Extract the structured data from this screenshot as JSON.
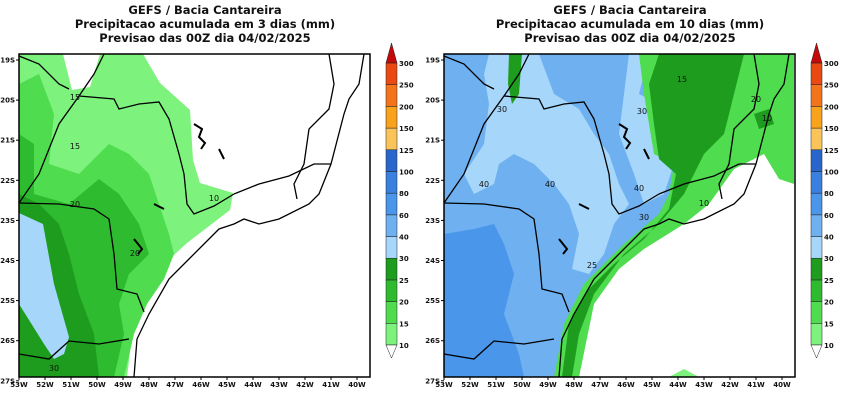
{
  "maps": [
    {
      "title": [
        "GEFS / Bacia Cantareira",
        "Precipitacao acumulada em 3 dias (mm)",
        "Previsao das 00Z dia 04/02/2025"
      ],
      "contour_labels": [
        "15",
        "15",
        "20",
        "20",
        "10",
        "30"
      ]
    },
    {
      "title": [
        "GEFS / Bacia Cantareira",
        "Precipitacao acumulada em 10 dias (mm)",
        "Previsao das 00Z dia 04/02/2025"
      ],
      "contour_labels": [
        "30",
        "30",
        "15",
        "20",
        "10",
        "40",
        "40",
        "40",
        "30",
        "10",
        "25"
      ]
    }
  ],
  "lat_ticks": [
    "19S",
    "20S",
    "21S",
    "22S",
    "23S",
    "24S",
    "25S",
    "26S",
    "27S"
  ],
  "lon_ticks": [
    "53W",
    "52W",
    "51W",
    "50W",
    "49W",
    "48W",
    "47W",
    "46W",
    "45W",
    "44W",
    "43W",
    "42W",
    "41W",
    "40W"
  ],
  "legend": {
    "levels": [
      "10",
      "15",
      "20",
      "25",
      "30",
      "40",
      "60",
      "80",
      "100",
      "125",
      "150",
      "200",
      "250",
      "300"
    ],
    "colors": [
      "#7df27d",
      "#4fdc4f",
      "#2fbb2f",
      "#1d9c1d",
      "#a6d6fa",
      "#6fb0f0",
      "#4a96ea",
      "#3a80e0",
      "#2866cc",
      "#fbc45a",
      "#f9a21c",
      "#f3741a",
      "#ea4a12",
      "#c20a0a"
    ]
  }
}
